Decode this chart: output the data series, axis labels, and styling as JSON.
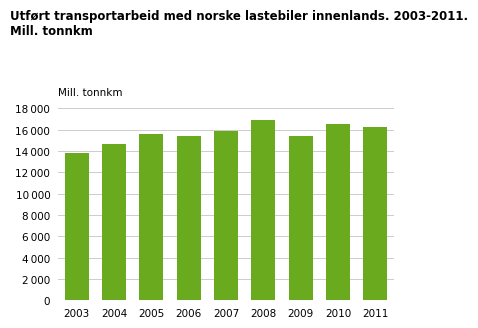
{
  "title_line1": "Utført transportarbeid med norske lastebiler innenlands. 2003-2011.",
  "title_line2": "Mill. tonnkm",
  "ylabel": "Mill. tonnkm",
  "categories": [
    "2003",
    "2004",
    "2005",
    "2006",
    "2007",
    "2008",
    "2009",
    "2010",
    "2011"
  ],
  "values": [
    13800,
    14650,
    15550,
    15450,
    15850,
    16900,
    15450,
    16500,
    16250
  ],
  "bar_color": "#6aaa1e",
  "ylim": [
    0,
    18000
  ],
  "yticks": [
    0,
    2000,
    4000,
    6000,
    8000,
    10000,
    12000,
    14000,
    16000,
    18000
  ],
  "background_color": "#ffffff",
  "grid_color": "#cccccc",
  "title_fontsize": 8.5,
  "label_fontsize": 7.5,
  "tick_fontsize": 7.5,
  "bar_width": 0.65
}
